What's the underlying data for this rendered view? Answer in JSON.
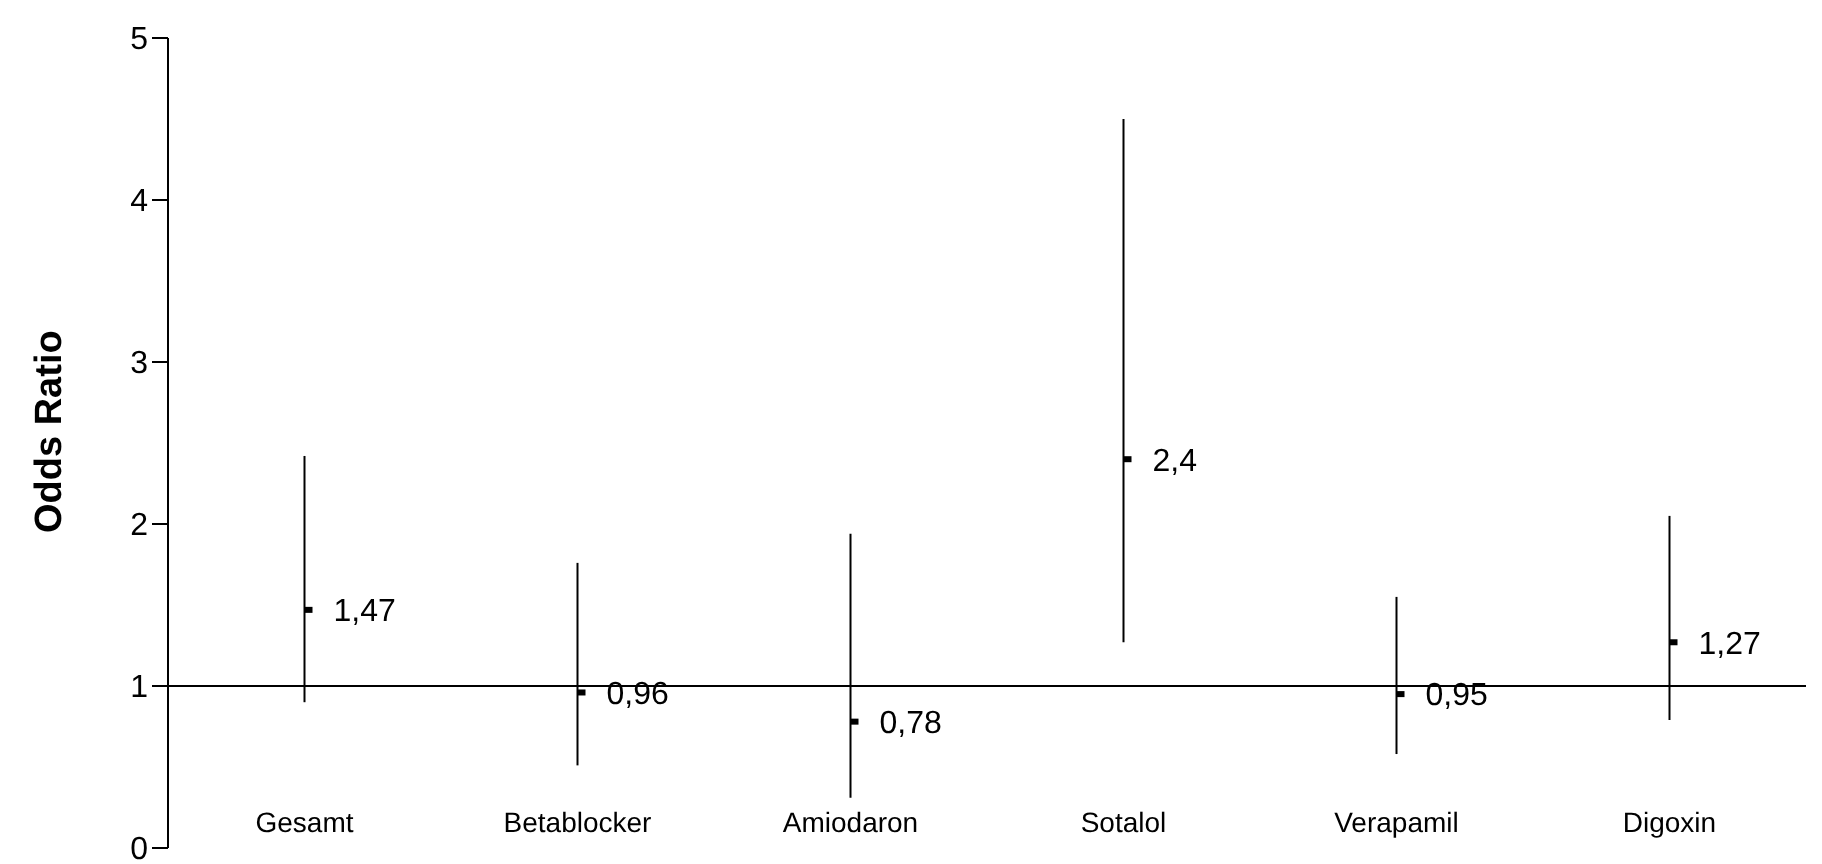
{
  "chart_data": {
    "type": "scatter",
    "ylabel": "Odds Ratio",
    "categories": [
      "Gesamt",
      "Betablocker",
      "Amiodaron",
      "Sotalol",
      "Verapamil",
      "Digoxin"
    ],
    "values": [
      1.47,
      0.96,
      0.78,
      2.4,
      0.95,
      1.27
    ],
    "errors": [
      [
        0.9,
        2.42
      ],
      [
        0.51,
        1.76
      ],
      [
        0.31,
        1.94
      ],
      [
        1.27,
        4.5
      ],
      [
        0.58,
        1.55
      ],
      [
        0.79,
        2.05
      ]
    ],
    "value_labels": [
      "1,47",
      "0,96",
      "0,78",
      "2,4",
      "0,95",
      "1,27"
    ],
    "color": "#000000",
    "ylim": [
      0,
      5
    ],
    "yticks": [
      0,
      1,
      2,
      3,
      4,
      5
    ],
    "ref_lines": [
      {
        "axis": "y",
        "value": 1
      }
    ],
    "grid": false,
    "legend": false
  }
}
